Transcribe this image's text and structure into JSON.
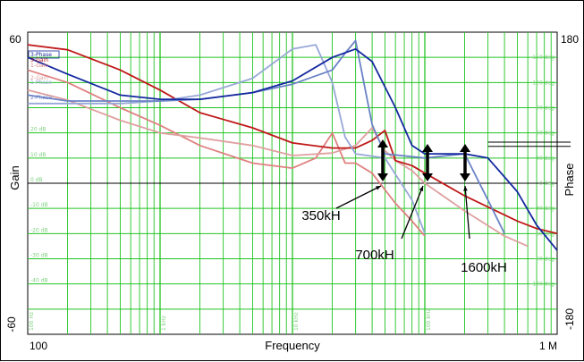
{
  "chart_data": {
    "type": "line",
    "xlabel": "Frequency",
    "y_left_label": "Gain",
    "y_right_label": "Phase",
    "x_scale": "log",
    "xlim": [
      100,
      1000000
    ],
    "x_major_ticks": [
      {
        "x": 100,
        "text": "100"
      },
      {
        "x": 1000000,
        "text": "1 M"
      }
    ],
    "x_minor_labels": [
      {
        "x": 100,
        "text": "100 Hz"
      },
      {
        "x": 1000,
        "text": "1 kHz"
      },
      {
        "x": 10000,
        "text": "10 kHz"
      },
      {
        "x": 100000,
        "text": "100 kHz"
      }
    ],
    "ylim_left": [
      -60,
      60
    ],
    "ylim_left_labels": [
      "60",
      "-60"
    ],
    "left_tick_labels": [
      {
        "v": 20,
        "text": "20 dB"
      },
      {
        "v": 10,
        "text": "10 dB"
      },
      {
        "v": 0,
        "text": "0 dB"
      },
      {
        "v": -10,
        "text": "-10 dB"
      },
      {
        "v": -20,
        "text": "-20 dB"
      },
      {
        "v": -30,
        "text": "-30 dB"
      },
      {
        "v": -40,
        "text": "-40 dB"
      }
    ],
    "ylim_right": [
      -180,
      180
    ],
    "ylim_right_labels": [
      "180",
      "-180"
    ],
    "right_tick_labels": [
      {
        "v": 150,
        "text": "150 deg"
      },
      {
        "v": 120,
        "text": "120 deg"
      },
      {
        "v": 90,
        "text": "90 deg"
      },
      {
        "v": 60,
        "text": "60 deg"
      },
      {
        "v": 30,
        "text": "30 deg"
      },
      {
        "v": 0,
        "text": "0 deg"
      },
      {
        "v": -30,
        "text": "-30 deg"
      },
      {
        "v": -60,
        "text": "-60 deg"
      },
      {
        "v": -90,
        "text": "-90 deg"
      },
      {
        "v": -120,
        "text": "-120 deg"
      }
    ],
    "grid": true,
    "legend_position": "top-left",
    "series": [
      {
        "name": "3-Phase",
        "axis": "right",
        "color": "#1428a0",
        "points": [
          [
            100,
            150
          ],
          [
            200,
            130
          ],
          [
            500,
            105
          ],
          [
            1000,
            100
          ],
          [
            2000,
            100
          ],
          [
            5000,
            108
          ],
          [
            10000,
            122
          ],
          [
            20000,
            150
          ],
          [
            30000,
            160
          ],
          [
            40000,
            145
          ],
          [
            60000,
            90
          ],
          [
            80000,
            45
          ],
          [
            100000,
            35
          ],
          [
            200000,
            35
          ],
          [
            300000,
            30
          ],
          [
            500000,
            -10
          ],
          [
            700000,
            -50
          ],
          [
            1000000,
            -80
          ]
        ]
      },
      {
        "name": "3-Gain",
        "axis": "left",
        "color": "#c01818",
        "points": [
          [
            100,
            55
          ],
          [
            200,
            53
          ],
          [
            500,
            45
          ],
          [
            1000,
            37
          ],
          [
            2000,
            28
          ],
          [
            5000,
            22
          ],
          [
            10000,
            16
          ],
          [
            20000,
            14
          ],
          [
            30000,
            14
          ],
          [
            40000,
            17
          ],
          [
            50000,
            21
          ],
          [
            60000,
            9
          ],
          [
            80000,
            7
          ],
          [
            100000,
            4
          ],
          [
            200000,
            -5
          ],
          [
            500000,
            -15
          ],
          [
            700000,
            -18
          ],
          [
            1000000,
            -20
          ]
        ]
      },
      {
        "name": "1-Gain",
        "axis": "left",
        "color": "#e08080",
        "points": [
          [
            100,
            45
          ],
          [
            200,
            40
          ],
          [
            500,
            30
          ],
          [
            1000,
            23
          ],
          [
            2000,
            15
          ],
          [
            5000,
            8
          ],
          [
            10000,
            6
          ],
          [
            15000,
            10
          ],
          [
            20000,
            20
          ],
          [
            25000,
            8
          ],
          [
            30000,
            8
          ],
          [
            40000,
            4
          ],
          [
            60000,
            -8
          ],
          [
            80000,
            -15
          ],
          [
            100000,
            -21
          ]
        ]
      },
      {
        "name": "2-Gain",
        "axis": "left",
        "color": "#e0a0a0",
        "points": [
          [
            100,
            37
          ],
          [
            200,
            33
          ],
          [
            500,
            25
          ],
          [
            1000,
            20
          ],
          [
            2000,
            18
          ],
          [
            5000,
            15
          ],
          [
            10000,
            11
          ],
          [
            20000,
            12
          ],
          [
            30000,
            15
          ],
          [
            40000,
            22
          ],
          [
            50000,
            13
          ],
          [
            60000,
            9
          ],
          [
            80000,
            5
          ],
          [
            100000,
            0
          ],
          [
            200000,
            -11
          ],
          [
            400000,
            -21
          ],
          [
            600000,
            -25
          ]
        ]
      },
      {
        "name": "1-Phase",
        "axis": "right",
        "color": "#98a8d8",
        "points": [
          [
            100,
            95
          ],
          [
            500,
            95
          ],
          [
            1000,
            98
          ],
          [
            2000,
            105
          ],
          [
            5000,
            125
          ],
          [
            10000,
            160
          ],
          [
            15000,
            165
          ],
          [
            20000,
            120
          ],
          [
            25000,
            55
          ],
          [
            30000,
            35
          ],
          [
            50000,
            30
          ],
          [
            80000,
            -20
          ],
          [
            100000,
            -60
          ]
        ]
      },
      {
        "name": "2-Phase",
        "axis": "right",
        "color": "#6b82c6",
        "points": [
          [
            100,
            105
          ],
          [
            200,
            98
          ],
          [
            500,
            98
          ],
          [
            1000,
            98
          ],
          [
            2000,
            100
          ],
          [
            5000,
            108
          ],
          [
            10000,
            118
          ],
          [
            20000,
            135
          ],
          [
            25000,
            155
          ],
          [
            30000,
            170
          ],
          [
            40000,
            70
          ],
          [
            50000,
            35
          ],
          [
            100000,
            30
          ],
          [
            200000,
            35
          ],
          [
            300000,
            -20
          ],
          [
            400000,
            -60
          ]
        ]
      }
    ],
    "annotations": [
      {
        "text": "350kH",
        "x_marker": 350000
      },
      {
        "text": "700kH",
        "x_marker": 700000
      },
      {
        "text": "1600kH",
        "x_marker": 1600000
      }
    ]
  }
}
